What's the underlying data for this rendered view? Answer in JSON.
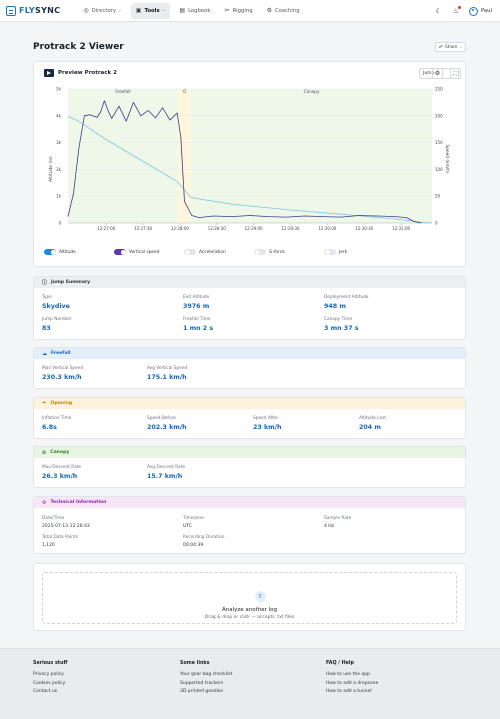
{
  "nav": {
    "brand_fly": "FLY",
    "brand_sync": "SYNC",
    "items": [
      {
        "label": "Directory",
        "icon": "compass-icon"
      },
      {
        "label": "Tools",
        "icon": "briefcase-icon"
      },
      {
        "label": "Logbook",
        "icon": "book-icon"
      },
      {
        "label": "Rigging",
        "icon": "scissors-icon"
      },
      {
        "label": "Coaching",
        "icon": "gear-icon"
      }
    ],
    "user": "Paul"
  },
  "page": {
    "title": "Protrack 2 Viewer",
    "share": "Share"
  },
  "preview": {
    "title": "Preview Protrack 2",
    "select_value": "Jump"
  },
  "chart_data": {
    "type": "line",
    "x_ticks": [
      "12:27:00",
      "12:27:30",
      "12:28:00",
      "12:28:30",
      "12:29:00",
      "12:29:30",
      "12:30:00",
      "12:30:30",
      "12:31:00"
    ],
    "y_left_ticks": [
      "0",
      "1k",
      "2k",
      "3k",
      "4k",
      "5k"
    ],
    "y_right_ticks": [
      "0",
      "50",
      "100",
      "150",
      "200",
      "250"
    ],
    "ylabel_left": "Altitude (m)",
    "ylabel_right": "Speed (km/h)",
    "ylim_left": [
      0,
      5000
    ],
    "ylim_right": [
      0,
      250
    ],
    "phases": [
      {
        "label": "Freefall",
        "start": 0.0,
        "end": 0.302,
        "color": "#eef7e8"
      },
      {
        "label": "O",
        "start": 0.302,
        "end": 0.338,
        "color": "#fdf5dc"
      },
      {
        "label": "Canopy",
        "start": 0.338,
        "end": 1.0,
        "color": "#eef7e8"
      }
    ],
    "series": [
      {
        "name": "Altitude",
        "color": "#7ec8e3",
        "x": [
          0.0,
          0.03,
          0.1,
          0.2,
          0.3,
          0.338,
          0.45,
          0.6,
          0.75,
          0.9,
          0.97,
          1.0
        ],
        "y": [
          3976,
          3800,
          3150,
          2350,
          1550,
          948,
          700,
          500,
          330,
          150,
          30,
          0
        ]
      },
      {
        "name": "Vertical speed",
        "color": "#3f3a8c",
        "x": [
          0.0,
          0.015,
          0.03,
          0.045,
          0.06,
          0.08,
          0.09,
          0.1,
          0.11,
          0.12,
          0.14,
          0.16,
          0.18,
          0.2,
          0.22,
          0.24,
          0.26,
          0.28,
          0.3,
          0.31,
          0.32,
          0.34,
          0.36,
          0.4,
          0.45,
          0.5,
          0.55,
          0.6,
          0.65,
          0.7,
          0.75,
          0.8,
          0.85,
          0.9,
          0.93,
          0.95,
          0.97
        ],
        "y": [
          12,
          55,
          140,
          200,
          202,
          197,
          208,
          228,
          210,
          195,
          218,
          190,
          225,
          200,
          210,
          196,
          215,
          192,
          205,
          160,
          40,
          14,
          10,
          13,
          12,
          14,
          12,
          11,
          13,
          12,
          11,
          14,
          13,
          12,
          10,
          3,
          0
        ]
      }
    ]
  },
  "toggles": [
    {
      "label": "Altitude",
      "state": "on",
      "color": "#1e88e5"
    },
    {
      "label": "Vertical speed",
      "state": "on",
      "color": "#5e35b1"
    },
    {
      "label": "Acceleration",
      "state": "off"
    },
    {
      "label": "G-force",
      "state": "off"
    },
    {
      "label": "Jerk",
      "state": "off"
    }
  ],
  "summary": {
    "title": "Jump Summary",
    "fields": [
      {
        "label": "Type",
        "value": "Skydive"
      },
      {
        "label": "Exit Altitude",
        "value": "3976 m"
      },
      {
        "label": "Deployment Altitude",
        "value": "948 m"
      },
      {
        "label": "Jump Number",
        "value": "83"
      },
      {
        "label": "Freefall Time",
        "value": "1 mn 2 s"
      },
      {
        "label": "Canopy Time",
        "value": "3 mn 37 s"
      }
    ]
  },
  "freefall": {
    "title": "Freefall",
    "fields": [
      {
        "label": "Max Vertical Speed",
        "value": "230.3 km/h"
      },
      {
        "label": "Avg Vertical Speed",
        "value": "175.1 km/h"
      }
    ]
  },
  "opening": {
    "title": "Opening",
    "fields": [
      {
        "label": "Inflation Time",
        "value": "6.8s"
      },
      {
        "label": "Speed Before",
        "value": "202.3 km/h"
      },
      {
        "label": "Speed After",
        "value": "23 km/h"
      },
      {
        "label": "Altitude Lost",
        "value": "204 m"
      }
    ]
  },
  "canopy": {
    "title": "Canopy",
    "fields": [
      {
        "label": "Max Descent Rate",
        "value": "26.3 km/h"
      },
      {
        "label": "Avg Descent Rate",
        "value": "15.7 km/h"
      }
    ]
  },
  "technical": {
    "title": "Technical Information",
    "fields": [
      {
        "label": "Date/Time",
        "value": "2025-07-13 12:26:43"
      },
      {
        "label": "Timezone",
        "value": "UTC"
      },
      {
        "label": "Sample Rate",
        "value": "4 Hz"
      },
      {
        "label": "Total Data Points",
        "value": "1,120"
      },
      {
        "label": "Recording Duration",
        "value": "00:04:39"
      }
    ]
  },
  "upload": {
    "title": "Analyze another log",
    "subtitle": "Drag & drop or click — accepts .txt files"
  },
  "footer": {
    "cols": [
      {
        "title": "Serious stuff",
        "links": [
          "Privacy policy",
          "Cookies policy",
          "Contact us"
        ]
      },
      {
        "title": "Some links",
        "links": [
          "Your gear bag checklist",
          "Supported trackers",
          "3D printed goodies"
        ]
      },
      {
        "title": "FAQ / Help",
        "links": [
          "How to use the app",
          "How to add a dropzone",
          "How to add a tunnel"
        ]
      }
    ]
  },
  "colors": {
    "brand": "#1e73be",
    "value_blue": "#1565c0",
    "summary_bg": "#eceef1",
    "freefall_bg": "#e4eefb",
    "opening_bg": "#fdf3dd",
    "canopy_bg": "#e7f4e2",
    "technical_bg": "#f6e6f6"
  }
}
